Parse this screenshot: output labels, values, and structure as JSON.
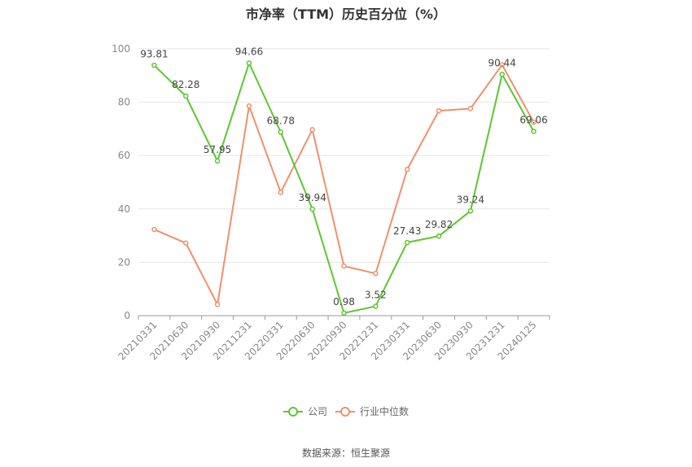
{
  "chart_data": {
    "type": "line",
    "title": "市净率（TTM）历史百分位（%）",
    "categories": [
      "20210331",
      "20210630",
      "20210930",
      "20211231",
      "20220331",
      "20220630",
      "20220930",
      "20221231",
      "20230331",
      "20230630",
      "20230930",
      "20231231",
      "20240125"
    ],
    "series": [
      {
        "name": "公司",
        "color": "#5cc72f",
        "values": [
          93.81,
          82.28,
          57.95,
          94.66,
          68.78,
          39.94,
          0.98,
          3.52,
          27.43,
          29.82,
          39.24,
          90.44,
          69.06
        ],
        "labels": [
          "93.81",
          "82.28",
          "57.95",
          "94.66",
          "68.78",
          "39.94",
          "0.98",
          "3.52",
          "27.43",
          "29.82",
          "39.24",
          "90.44",
          "69.06"
        ]
      },
      {
        "name": "行业中位数",
        "color": "#f0906a",
        "values": [
          32.3,
          27.2,
          4.2,
          78.6,
          46.2,
          69.7,
          18.6,
          15.8,
          54.8,
          76.8,
          77.6,
          94.0,
          72.5
        ]
      }
    ],
    "yticks": [
      "0",
      "20",
      "40",
      "60",
      "80",
      "100"
    ],
    "ylim": [
      0,
      100
    ],
    "grid": true,
    "legend_position": "bottom"
  },
  "source": "数据来源：恒生聚源"
}
